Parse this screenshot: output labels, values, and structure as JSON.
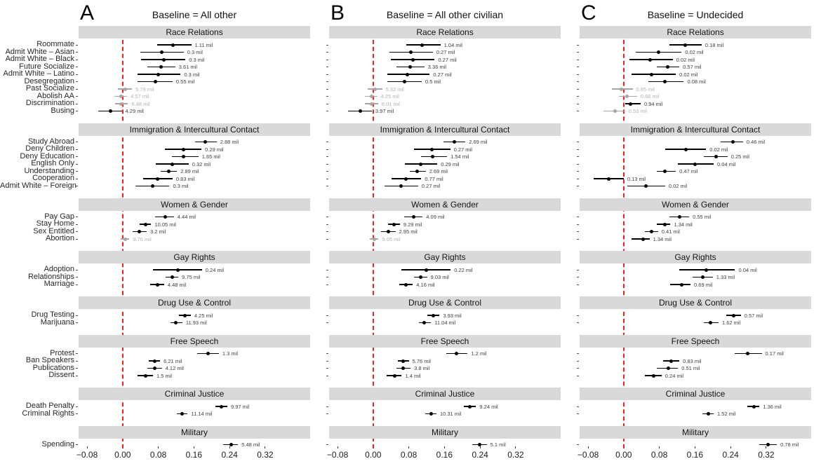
{
  "chart_data": {
    "type": "forest",
    "description": "Three-panel coefficient dot-and-CI plot with section strips",
    "row_format": [
      "estimate",
      "ci_low",
      "ci_high",
      "value_label",
      "significant"
    ],
    "x_axis": {
      "tick_values": [
        -0.08,
        0.0,
        0.08,
        0.16,
        0.24,
        0.32
      ],
      "tick_labels": [
        "−0.08",
        "0.00",
        "0.08",
        "0.16",
        "0.24",
        "0.32"
      ],
      "range": [
        -0.099,
        0.421
      ],
      "reference_line": 0
    },
    "colors": {
      "significant": "#000000",
      "nonsignificant": "#a6a6a6",
      "value_label": "#3d3d3d",
      "value_label_ns": "#b3b3b3",
      "reference_line": "#fb1c1c",
      "header_bg": "#d9d9d9",
      "text": "#1a1a1a"
    },
    "sections": [
      {
        "title": "Race Relations",
        "rows": [
          "Roommate",
          "Admit White – Asian",
          "Admit White – Black",
          "Future Socialize",
          "Admit White – Latino",
          "Desegregation",
          "Past Socialize",
          "Abolish AA",
          "Discrimination",
          "Busing"
        ]
      },
      {
        "title": "Immigration & Intercultural Contact",
        "rows": [
          "Study Abroad",
          "Deny Children",
          "Deny Education",
          "English Only",
          "Understanding",
          "Cooperation",
          "Admit White – Foreign"
        ]
      },
      {
        "title": "Women & Gender",
        "rows": [
          "Pay Gap",
          "Stay Home",
          "Sex Entitled",
          "Abortion"
        ]
      },
      {
        "title": "Gay Rights",
        "rows": [
          "Adoption",
          "Relationships",
          "Marriage"
        ]
      },
      {
        "title": "Drug Use & Control",
        "rows": [
          "Drug Testing",
          "Marijuana"
        ]
      },
      {
        "title": "Free Speech",
        "rows": [
          "Protest",
          "Ban Speakers",
          "Publications",
          "Dissent"
        ]
      },
      {
        "title": "Criminal Justice",
        "rows": [
          "Death Penalty",
          "Criminal Rights"
        ]
      },
      {
        "title": "Military",
        "rows": [
          "Spending"
        ]
      }
    ],
    "panels": [
      {
        "letter": "A",
        "title": "Baseline = All other",
        "sections": [
          [
            [
              0.113,
              0.078,
              0.154,
              "1.11 mil",
              true
            ],
            [
              0.088,
              0.039,
              0.137,
              "0.3 mil",
              true
            ],
            [
              0.092,
              0.042,
              0.141,
              "0.3 mil",
              true
            ],
            [
              0.086,
              0.056,
              0.118,
              "3.61 mil",
              true
            ],
            [
              0.08,
              0.034,
              0.13,
              "0.3 mil",
              true
            ],
            [
              0.073,
              0.034,
              0.112,
              "0.55 mil",
              true
            ],
            [
              0.005,
              -0.011,
              0.021,
              "5.79 mil",
              false
            ],
            [
              -0.003,
              -0.018,
              0.01,
              "4.57 mil",
              false
            ],
            [
              -0.003,
              -0.017,
              0.012,
              "6.48 mil",
              false
            ],
            [
              -0.028,
              -0.055,
              -0.002,
              "4.29 mil",
              true
            ]
          ],
          [
            [
              0.186,
              0.162,
              0.211,
              "2.88 mil",
              true
            ],
            [
              0.136,
              0.095,
              0.177,
              "0.29 mil",
              true
            ],
            [
              0.137,
              0.111,
              0.17,
              "1.65 mil",
              true
            ],
            [
              0.111,
              0.075,
              0.148,
              "0.32 mil",
              true
            ],
            [
              0.103,
              0.086,
              0.122,
              "2.89 mil",
              true
            ],
            [
              0.078,
              0.046,
              0.112,
              "0.83 mil",
              true
            ],
            [
              0.067,
              0.029,
              0.105,
              "0.3 mil",
              true
            ]
          ],
          [
            [
              0.095,
              0.073,
              0.115,
              "4.44 mil",
              true
            ],
            [
              0.051,
              0.038,
              0.064,
              "10.05 mil",
              true
            ],
            [
              0.038,
              0.022,
              0.054,
              "3.2 mil",
              true
            ],
            [
              0.005,
              -0.004,
              0.015,
              "9.76 mil",
              false
            ]
          ],
          [
            [
              0.124,
              0.068,
              0.178,
              "0.24 mil",
              true
            ],
            [
              0.111,
              0.096,
              0.125,
              "9.75 mil",
              true
            ],
            [
              0.078,
              0.062,
              0.093,
              "4.48 mil",
              true
            ]
          ],
          [
            [
              0.139,
              0.126,
              0.153,
              "4.25 mil",
              true
            ],
            [
              0.119,
              0.107,
              0.134,
              "11.93 mil",
              true
            ]
          ],
          [
            [
              0.191,
              0.168,
              0.216,
              "1.3 mil",
              true
            ],
            [
              0.072,
              0.059,
              0.084,
              "6.21 mil",
              true
            ],
            [
              0.072,
              0.056,
              0.088,
              "4.12 mil",
              true
            ],
            [
              0.052,
              0.034,
              0.068,
              "1.5 mil",
              true
            ]
          ],
          [
            [
              0.221,
              0.208,
              0.235,
              "9.97 mil",
              true
            ],
            [
              0.134,
              0.121,
              0.146,
              "11.14 mil",
              true
            ]
          ],
          [
            [
              0.243,
              0.226,
              0.259,
              "5.48 mil",
              true
            ]
          ]
        ]
      },
      {
        "letter": "B",
        "title": "Baseline = All other civilian",
        "sections": [
          [
            [
              0.11,
              0.075,
              0.151,
              "1.04 mil",
              true
            ],
            [
              0.085,
              0.036,
              0.134,
              "0.27 mil",
              true
            ],
            [
              0.089,
              0.039,
              0.138,
              "0.27 mil",
              true
            ],
            [
              0.083,
              0.053,
              0.115,
              "3.36 mil",
              true
            ],
            [
              0.077,
              0.031,
              0.127,
              "0.27 mil",
              true
            ],
            [
              0.07,
              0.031,
              0.109,
              "0.5 mil",
              true
            ],
            [
              0.004,
              -0.012,
              0.02,
              "5.32 mil",
              false
            ],
            [
              -0.004,
              -0.019,
              0.009,
              "4.25 mil",
              false
            ],
            [
              -0.004,
              -0.018,
              0.011,
              "6.01 mil",
              false
            ],
            [
              -0.029,
              -0.056,
              -0.003,
              "3.97 mil",
              true
            ]
          ],
          [
            [
              0.182,
              0.158,
              0.207,
              "2.69 mil",
              true
            ],
            [
              0.132,
              0.091,
              0.173,
              "0.27 mil",
              true
            ],
            [
              0.133,
              0.107,
              0.166,
              "1.54 mil",
              true
            ],
            [
              0.107,
              0.071,
              0.144,
              "0.29 mil",
              true
            ],
            [
              0.099,
              0.082,
              0.118,
              "2.69 mil",
              true
            ],
            [
              0.074,
              0.042,
              0.108,
              "0.77 mil",
              true
            ],
            [
              0.063,
              0.025,
              0.101,
              "0.27 mil",
              true
            ]
          ],
          [
            [
              0.091,
              0.069,
              0.111,
              "4.09 mil",
              true
            ],
            [
              0.047,
              0.034,
              0.06,
              "9.29 mil",
              true
            ],
            [
              0.034,
              0.018,
              0.05,
              "2.95 mil",
              true
            ],
            [
              0.002,
              -0.007,
              0.012,
              "9.05 mil",
              false
            ]
          ],
          [
            [
              0.12,
              0.064,
              0.174,
              "0.22 mil",
              true
            ],
            [
              0.107,
              0.092,
              0.121,
              "9.03 mil",
              true
            ],
            [
              0.074,
              0.058,
              0.089,
              "4.16 mil",
              true
            ]
          ],
          [
            [
              0.135,
              0.122,
              0.149,
              "3.93 mil",
              true
            ],
            [
              0.115,
              0.103,
              0.13,
              "11.04 mil",
              true
            ]
          ],
          [
            [
              0.187,
              0.164,
              0.212,
              "1.2 mil",
              true
            ],
            [
              0.068,
              0.055,
              0.08,
              "5.76 mil",
              true
            ],
            [
              0.068,
              0.052,
              0.084,
              "3.8 mil",
              true
            ],
            [
              0.048,
              0.03,
              0.064,
              "1.4 mil",
              true
            ]
          ],
          [
            [
              0.217,
              0.204,
              0.231,
              "9.24 mil",
              true
            ],
            [
              0.13,
              0.117,
              0.142,
              "10.31 mil",
              true
            ]
          ],
          [
            [
              0.239,
              0.222,
              0.255,
              "5.1 mil",
              true
            ]
          ]
        ]
      },
      {
        "letter": "C",
        "title": "Baseline = Undecided",
        "sections": [
          [
            [
              0.138,
              0.102,
              0.175,
              "0.18 mil",
              true
            ],
            [
              0.078,
              0.027,
              0.13,
              "0.02 mil",
              true
            ],
            [
              0.06,
              0.013,
              0.11,
              "0.02 mil",
              true
            ],
            [
              0.098,
              0.075,
              0.125,
              "0.57 mil",
              true
            ],
            [
              0.063,
              0.018,
              0.117,
              "0.02 mil",
              true
            ],
            [
              0.093,
              0.055,
              0.135,
              "0.08 mil",
              true
            ],
            [
              -0.005,
              -0.027,
              0.02,
              "0.85 mil",
              false
            ],
            [
              0.008,
              -0.01,
              0.03,
              "0.68 mil",
              false
            ],
            [
              0.015,
              0.003,
              0.038,
              "0.94 mil",
              true
            ],
            [
              -0.02,
              -0.046,
              0.003,
              "0.53 mil",
              false
            ]
          ],
          [
            [
              0.245,
              0.217,
              0.268,
              "0.46 mil",
              true
            ],
            [
              0.14,
              0.093,
              0.185,
              "0.02 mil",
              true
            ],
            [
              0.208,
              0.18,
              0.233,
              "0.25 mil",
              true
            ],
            [
              0.16,
              0.122,
              0.202,
              "0.04 mil",
              true
            ],
            [
              0.093,
              0.075,
              0.117,
              "0.47 mil",
              true
            ],
            [
              -0.033,
              -0.067,
              0.0,
              "0.13 mil",
              true
            ],
            [
              0.05,
              0.008,
              0.093,
              "0.02 mil",
              true
            ]
          ],
          [
            [
              0.125,
              0.102,
              0.147,
              "0.55 mil",
              true
            ],
            [
              0.092,
              0.075,
              0.105,
              "1.34 mil",
              true
            ],
            [
              0.063,
              0.047,
              0.077,
              "0.41 mil",
              true
            ],
            [
              0.043,
              0.017,
              0.058,
              "1.34 mil",
              true
            ]
          ],
          [
            [
              0.185,
              0.125,
              0.25,
              "0.04 mil",
              true
            ],
            [
              0.177,
              0.155,
              0.2,
              "1.33 mil",
              true
            ],
            [
              0.13,
              0.105,
              0.15,
              "0.69 mil",
              true
            ]
          ],
          [
            [
              0.247,
              0.23,
              0.263,
              "0.57 mil",
              true
            ],
            [
              0.195,
              0.18,
              0.213,
              "1.62 mil",
              true
            ]
          ],
          [
            [
              0.278,
              0.25,
              0.31,
              "0.17 mil",
              true
            ],
            [
              0.107,
              0.088,
              0.125,
              "0.83 mil",
              true
            ],
            [
              0.1,
              0.075,
              0.122,
              "0.51 mil",
              true
            ],
            [
              0.067,
              0.047,
              0.085,
              "0.24 mil",
              true
            ]
          ],
          [
            [
              0.292,
              0.277,
              0.305,
              "1.36 mil",
              true
            ],
            [
              0.19,
              0.177,
              0.202,
              "1.52 mil",
              true
            ]
          ],
          [
            [
              0.324,
              0.305,
              0.344,
              "0.78 mil",
              true
            ]
          ]
        ]
      }
    ]
  }
}
